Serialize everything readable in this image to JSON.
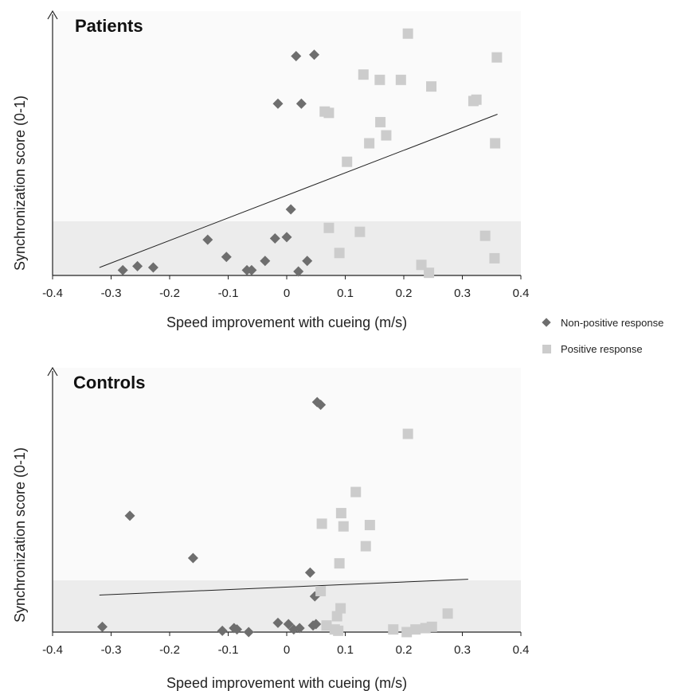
{
  "chart_data": [
    {
      "type": "scatter",
      "title": "Patients",
      "xlabel": "Speed improvement with cueing (m/s)",
      "ylabel": "Synchronization score (0-1)",
      "xlim": [
        -0.4,
        0.4
      ],
      "ylim": [
        0,
        1
      ],
      "xticks": [
        "-0.4",
        "-0.3",
        "-0.2",
        "-0.1",
        "0",
        "0.1",
        "0.2",
        "0.3",
        "0.4"
      ],
      "shaded_band": [
        0,
        0.2
      ],
      "trendline": [
        [
          -0.32,
          0.03
        ],
        [
          0.36,
          0.61
        ]
      ],
      "series": [
        {
          "name": "Non-positive response",
          "color": "#6e6e6e",
          "marker": "diamond",
          "points": [
            [
              -0.28,
              0.02
            ],
            [
              -0.255,
              0.035
            ],
            [
              -0.228,
              0.03
            ],
            [
              -0.135,
              0.135
            ],
            [
              -0.103,
              0.07
            ],
            [
              -0.068,
              0.02
            ],
            [
              -0.06,
              0.02
            ],
            [
              -0.037,
              0.055
            ],
            [
              -0.02,
              0.14
            ],
            [
              0.0,
              0.145
            ],
            [
              0.007,
              0.25
            ],
            [
              0.02,
              0.015
            ],
            [
              0.035,
              0.055
            ],
            [
              -0.015,
              0.65
            ],
            [
              0.025,
              0.65
            ],
            [
              0.016,
              0.83
            ],
            [
              0.047,
              0.835
            ]
          ]
        },
        {
          "name": "Positive response",
          "color": "#cccccc",
          "marker": "square",
          "points": [
            [
              0.065,
              0.62
            ],
            [
              0.072,
              0.615
            ],
            [
              0.072,
              0.18
            ],
            [
              0.09,
              0.085
            ],
            [
              0.103,
              0.43
            ],
            [
              0.125,
              0.165
            ],
            [
              0.131,
              0.76
            ],
            [
              0.141,
              0.5
            ],
            [
              0.159,
              0.74
            ],
            [
              0.16,
              0.58
            ],
            [
              0.17,
              0.53
            ],
            [
              0.195,
              0.74
            ],
            [
              0.207,
              0.915
            ],
            [
              0.23,
              0.04
            ],
            [
              0.243,
              0.01
            ],
            [
              0.247,
              0.715
            ],
            [
              0.319,
              0.66
            ],
            [
              0.324,
              0.665
            ],
            [
              0.339,
              0.15
            ],
            [
              0.355,
              0.065
            ],
            [
              0.356,
              0.5
            ],
            [
              0.359,
              0.825
            ]
          ]
        }
      ]
    },
    {
      "type": "scatter",
      "title": "Controls",
      "xlabel": "Speed improvement with cueing (m/s)",
      "ylabel": "Synchronization score (0-1)",
      "xlim": [
        -0.4,
        0.4
      ],
      "ylim": [
        0,
        1
      ],
      "xticks": [
        "-0.4",
        "-0.3",
        "-0.2",
        "-0.1",
        "0",
        "0.1",
        "0.2",
        "0.3",
        "0.4"
      ],
      "shaded_band": [
        0,
        0.2
      ],
      "trendline": [
        [
          -0.32,
          0.14
        ],
        [
          0.31,
          0.2
        ]
      ],
      "series": [
        {
          "name": "Non-positive response",
          "color": "#6e6e6e",
          "marker": "diamond",
          "points": [
            [
              -0.315,
              0.02
            ],
            [
              -0.268,
              0.44
            ],
            [
              -0.16,
              0.28
            ],
            [
              -0.11,
              0.005
            ],
            [
              -0.09,
              0.015
            ],
            [
              -0.085,
              0.01
            ],
            [
              -0.065,
              0.0
            ],
            [
              -0.015,
              0.035
            ],
            [
              0.003,
              0.03
            ],
            [
              0.012,
              0.01
            ],
            [
              0.022,
              0.015
            ],
            [
              0.04,
              0.225
            ],
            [
              0.045,
              0.025
            ],
            [
              0.048,
              0.135
            ],
            [
              0.05,
              0.03
            ],
            [
              0.052,
              0.87
            ],
            [
              0.058,
              0.86
            ]
          ]
        },
        {
          "name": "Positive response",
          "color": "#cccccc",
          "marker": "square",
          "points": [
            [
              0.058,
              0.155
            ],
            [
              0.06,
              0.41
            ],
            [
              0.068,
              0.025
            ],
            [
              0.082,
              0.01
            ],
            [
              0.086,
              0.06
            ],
            [
              0.088,
              0.005
            ],
            [
              0.09,
              0.26
            ],
            [
              0.092,
              0.09
            ],
            [
              0.093,
              0.45
            ],
            [
              0.097,
              0.4
            ],
            [
              0.118,
              0.53
            ],
            [
              0.135,
              0.325
            ],
            [
              0.142,
              0.405
            ],
            [
              0.182,
              0.01
            ],
            [
              0.205,
              0.0
            ],
            [
              0.207,
              0.75
            ],
            [
              0.22,
              0.01
            ],
            [
              0.237,
              0.015
            ],
            [
              0.248,
              0.02
            ],
            [
              0.275,
              0.07
            ]
          ]
        }
      ]
    }
  ],
  "legend": {
    "placement": "right",
    "items": [
      {
        "label": "Non-positive response",
        "color": "#6e6e6e",
        "marker": "diamond-icon"
      },
      {
        "label": "Positive response",
        "color": "#cccccc",
        "marker": "square-icon"
      }
    ]
  }
}
